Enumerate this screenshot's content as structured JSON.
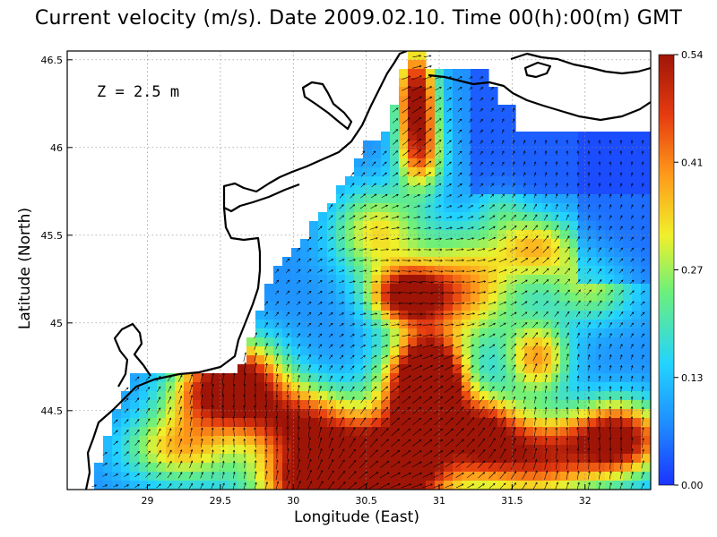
{
  "title": "Current velocity (m/s). Date 2009.02.10. Time 00(h):00(m) GMT",
  "xlabel": "Longitude (East)",
  "ylabel": "Latitude (North)",
  "annotation": "Z = 2.5 m",
  "x_ticks": [
    "29",
    "29.5",
    "30",
    "30.5",
    "31",
    "31.5",
    "32"
  ],
  "y_ticks": [
    "44.5",
    "45",
    "45.5",
    "46",
    "46.5"
  ],
  "colorbar": {
    "ticks": [
      "0.00",
      "0.13",
      "0.27",
      "0.41",
      "0.54"
    ],
    "colors": [
      "#1a33ff",
      "#1f8cff",
      "#22d3ff",
      "#6df07a",
      "#f0f02a",
      "#ff9a1a",
      "#e53b10",
      "#9e1508"
    ]
  },
  "chart_data": {
    "type": "heatmap",
    "title": "Current velocity (m/s). Date 2009.02.10. Time 00(h):00(m) GMT",
    "xlabel": "Longitude (East)",
    "ylabel": "Latitude (North)",
    "xlim": [
      28.45,
      32.45
    ],
    "ylim": [
      44.05,
      46.55
    ],
    "clim": [
      0.0,
      0.54
    ],
    "depth_annotation": "Z = 2.5 m",
    "variable": "current velocity (m/s)",
    "representation": "filled color field with velocity vector arrows"
  }
}
